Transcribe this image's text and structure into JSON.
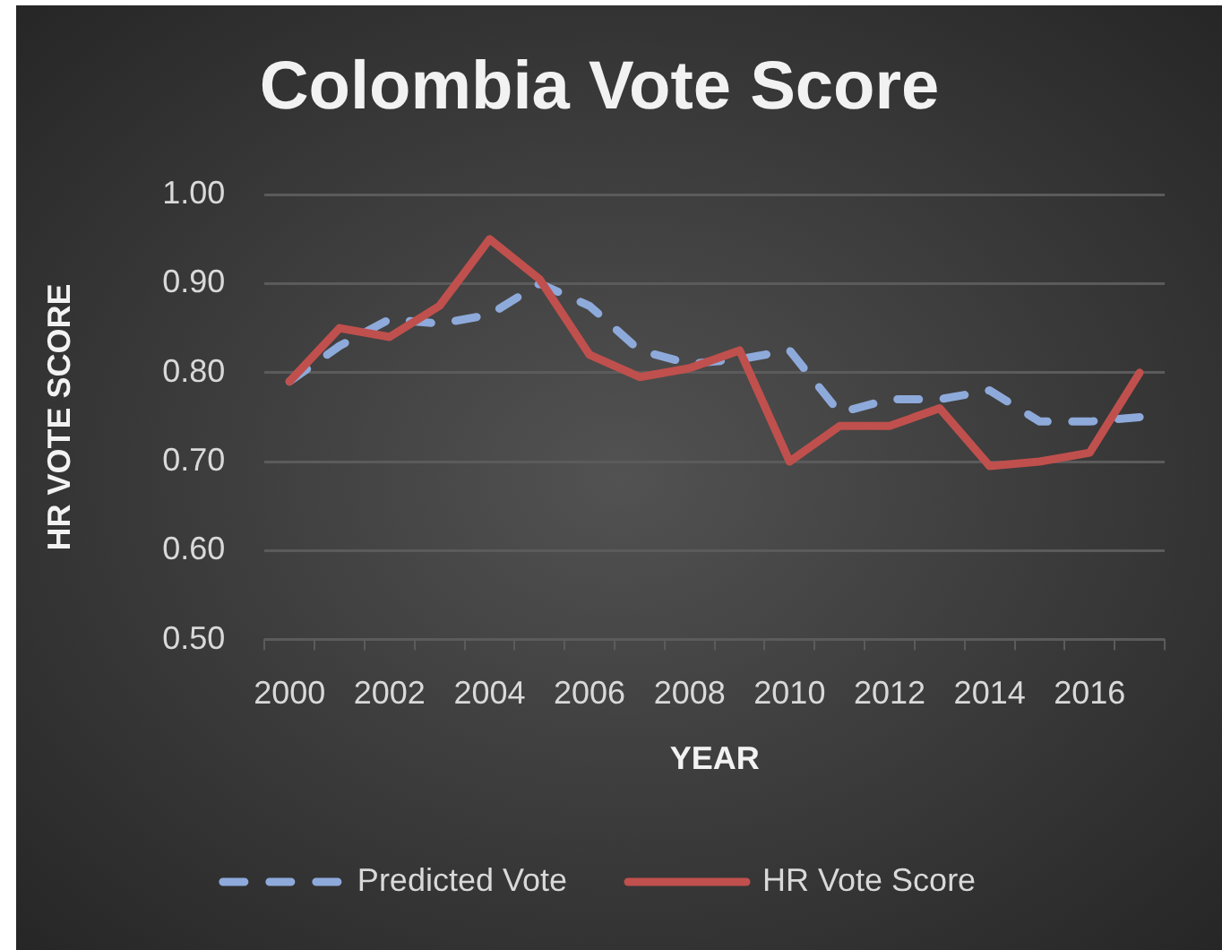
{
  "chart_data": {
    "type": "line",
    "title": "Colombia Vote Score",
    "xlabel": "YEAR",
    "ylabel": "HR VOTE SCORE",
    "categories": [
      "2000",
      null,
      "2002",
      null,
      "2004",
      null,
      "2006",
      null,
      "2008",
      null,
      "2010",
      null,
      "2012",
      null,
      "2014",
      null,
      "2016",
      null
    ],
    "series": [
      {
        "name": "Predicted Vote",
        "color": "#8eaadb",
        "line_style": "dashed",
        "values": [
          0.79,
          0.83,
          0.86,
          0.855,
          0.865,
          0.9,
          0.875,
          0.825,
          0.81,
          0.815,
          0.825,
          0.755,
          0.77,
          0.77,
          0.78,
          0.745,
          0.745,
          0.75
        ]
      },
      {
        "name": "HR Vote Score",
        "color": "#c0504d",
        "line_style": "solid",
        "values": [
          0.79,
          0.85,
          0.84,
          0.875,
          0.95,
          0.905,
          0.82,
          0.795,
          0.805,
          0.825,
          0.7,
          0.74,
          0.74,
          0.76,
          0.695,
          0.7,
          0.71,
          0.8
        ]
      }
    ],
    "ylim": [
      0.5,
      1.0
    ],
    "yticks": [
      {
        "value": 0.5,
        "label": "0.50"
      },
      {
        "value": 0.6,
        "label": "0.60"
      },
      {
        "value": 0.7,
        "label": "0.70"
      },
      {
        "value": 0.8,
        "label": "0.80"
      },
      {
        "value": 0.9,
        "label": "0.90"
      },
      {
        "value": 1.0,
        "label": "1.00"
      }
    ],
    "grid": "y",
    "legend": "bottom",
    "marker": "none"
  }
}
